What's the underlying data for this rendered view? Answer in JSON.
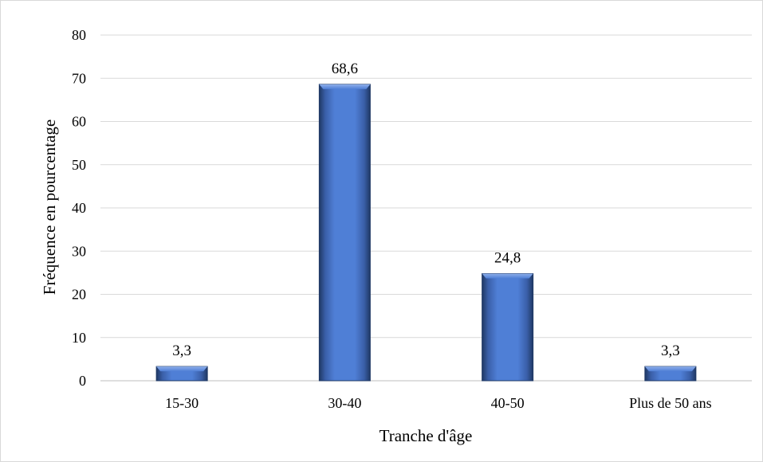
{
  "chart_data": {
    "type": "bar",
    "title": "",
    "xlabel": "Tranche d'âge",
    "ylabel": "Fréquence en pourcentage",
    "categories": [
      "15-30",
      "30-40",
      "40-50",
      "Plus de 50 ans"
    ],
    "values": [
      3.3,
      68.6,
      24.8,
      3.3
    ],
    "data_labels": [
      "3,3",
      "68,6",
      "24,8",
      "3,3"
    ],
    "ylim": [
      0,
      80
    ],
    "yticks": [
      0,
      10,
      20,
      30,
      40,
      50,
      60,
      70,
      80
    ],
    "grid": true,
    "legend": "none",
    "colors": {
      "bar_fill": "#4472c4",
      "bar_light": "#6f95dc",
      "bar_dark": "#1f3864",
      "gridline": "#d9d9d9"
    }
  }
}
